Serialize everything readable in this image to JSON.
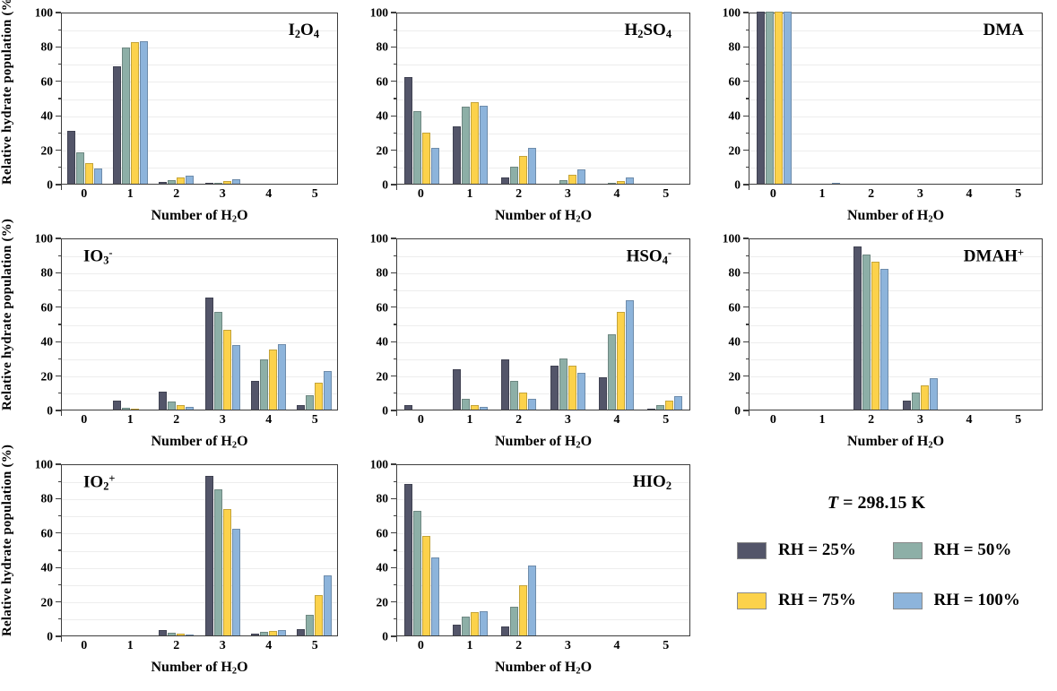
{
  "chart_data": {
    "type": "bar",
    "grouped": true,
    "categories": [
      "0",
      "1",
      "2",
      "3",
      "4",
      "5"
    ],
    "xlabel_parts": [
      {
        "t": "Number of H"
      },
      {
        "t": "2",
        "sub": true
      },
      {
        "t": "O"
      }
    ],
    "ylabel": "Relative hydrate population (%)",
    "ylim": [
      0,
      100
    ],
    "ytick_major_step": 20,
    "ytick_minor_step": 10,
    "grid": "horizontal lines every 10",
    "legend_position": "bottom-right cell",
    "series_names": [
      "RH = 25%",
      "RH = 50%",
      "RH = 75%",
      "RH = 100%"
    ],
    "series_colors": [
      "#535569",
      "#8dafa7",
      "#fcd24b",
      "#8db4db"
    ],
    "panels": [
      {
        "id": "i2o4",
        "title_parts": [
          {
            "t": "I"
          },
          {
            "t": "2",
            "sub": true
          },
          {
            "t": "O"
          },
          {
            "t": "4",
            "sub": true
          }
        ],
        "title_pos": "right",
        "series": [
          {
            "name": "RH = 25%",
            "values": [
              30.5,
              68,
              1,
              0.5,
              0,
              0
            ]
          },
          {
            "name": "RH = 50%",
            "values": [
              18,
              79,
              2,
              0.5,
              0,
              0
            ]
          },
          {
            "name": "RH = 75%",
            "values": [
              12,
              82.5,
              3.5,
              1.5,
              0,
              0
            ]
          },
          {
            "name": "RH = 100%",
            "values": [
              9,
              83,
              4.5,
              2.5,
              0,
              0
            ]
          }
        ]
      },
      {
        "id": "h2so4",
        "title_parts": [
          {
            "t": "H"
          },
          {
            "t": "2",
            "sub": true
          },
          {
            "t": "SO"
          },
          {
            "t": "4",
            "sub": true
          }
        ],
        "title_pos": "right",
        "series": [
          {
            "name": "RH = 25%",
            "values": [
              62,
              33.5,
              3.5,
              0,
              0,
              0
            ]
          },
          {
            "name": "RH = 50%",
            "values": [
              42,
              45,
              10,
              2,
              0.5,
              0
            ]
          },
          {
            "name": "RH = 75%",
            "values": [
              29.5,
              47.5,
              16,
              5,
              1.5,
              0
            ]
          },
          {
            "name": "RH = 100%",
            "values": [
              21,
              45.5,
              21,
              8.5,
              3.5,
              0
            ]
          }
        ]
      },
      {
        "id": "dma",
        "title_parts": [
          {
            "t": "DMA"
          }
        ],
        "title_pos": "right",
        "series": [
          {
            "name": "RH = 25%",
            "values": [
              100,
              0,
              0,
              0,
              0,
              0
            ]
          },
          {
            "name": "RH = 50%",
            "values": [
              100,
              0,
              0,
              0,
              0,
              0
            ]
          },
          {
            "name": "RH = 75%",
            "values": [
              100,
              0,
              0,
              0,
              0,
              0
            ]
          },
          {
            "name": "RH = 100%",
            "values": [
              100,
              0.5,
              0,
              0,
              0,
              0
            ]
          }
        ]
      },
      {
        "id": "io3",
        "title_parts": [
          {
            "t": "IO"
          },
          {
            "t": "3",
            "sub": true
          },
          {
            "t": "-",
            "sup": true
          }
        ],
        "title_pos": "left",
        "series": [
          {
            "name": "RH = 25%",
            "values": [
              0,
              5,
              10.5,
              65,
              16.5,
              2.5
            ]
          },
          {
            "name": "RH = 50%",
            "values": [
              0,
              1,
              4.5,
              57,
              29,
              8.5
            ]
          },
          {
            "name": "RH = 75%",
            "values": [
              0,
              0.5,
              2.5,
              46.5,
              35,
              15.5
            ]
          },
          {
            "name": "RH = 100%",
            "values": [
              0,
              0,
              1.5,
              37.5,
              38,
              22.5
            ]
          }
        ]
      },
      {
        "id": "hso4",
        "title_parts": [
          {
            "t": "HSO"
          },
          {
            "t": "4",
            "sub": true
          },
          {
            "t": "-",
            "sup": true
          }
        ],
        "title_pos": "right",
        "series": [
          {
            "name": "RH = 25%",
            "values": [
              2.5,
              23.5,
              29,
              25.5,
              19,
              0.5
            ]
          },
          {
            "name": "RH = 50%",
            "values": [
              0,
              6.5,
              16.5,
              29.5,
              44,
              2.5
            ]
          },
          {
            "name": "RH = 75%",
            "values": [
              0,
              2.5,
              10,
              25.5,
              57,
              5
            ]
          },
          {
            "name": "RH = 100%",
            "values": [
              0,
              1.5,
              6,
              21.5,
              63.5,
              8
            ]
          }
        ]
      },
      {
        "id": "dmah",
        "title_parts": [
          {
            "t": "DMAH"
          },
          {
            "t": "+",
            "sup": true
          }
        ],
        "title_pos": "right",
        "series": [
          {
            "name": "RH = 25%",
            "values": [
              0,
              0,
              95,
              5,
              0,
              0
            ]
          },
          {
            "name": "RH = 50%",
            "values": [
              0,
              0,
              90,
              10,
              0,
              0
            ]
          },
          {
            "name": "RH = 75%",
            "values": [
              0,
              0,
              86,
              14,
              0,
              0
            ]
          },
          {
            "name": "RH = 100%",
            "values": [
              0,
              0,
              82,
              18,
              0,
              0
            ]
          }
        ]
      },
      {
        "id": "io2",
        "title_parts": [
          {
            "t": "IO"
          },
          {
            "t": "2",
            "sub": true
          },
          {
            "t": "+",
            "sup": true
          }
        ],
        "title_pos": "left",
        "series": [
          {
            "name": "RH = 25%",
            "values": [
              0,
              0,
              3,
              92.5,
              1,
              3.5
            ]
          },
          {
            "name": "RH = 50%",
            "values": [
              0,
              0,
              1.5,
              85,
              2,
              12
            ]
          },
          {
            "name": "RH = 75%",
            "values": [
              0,
              0,
              1,
              73.5,
              2.5,
              23.5
            ]
          },
          {
            "name": "RH = 100%",
            "values": [
              0,
              0,
              0.5,
              62,
              3,
              35
            ]
          }
        ]
      },
      {
        "id": "hio2",
        "title_parts": [
          {
            "t": "HIO"
          },
          {
            "t": "2",
            "sub": true
          }
        ],
        "title_pos": "right",
        "series": [
          {
            "name": "RH = 25%",
            "values": [
              88,
              6.5,
              5,
              0,
              0,
              0
            ]
          },
          {
            "name": "RH = 50%",
            "values": [
              72.5,
              11,
              16.5,
              0,
              0,
              0
            ]
          },
          {
            "name": "RH = 75%",
            "values": [
              58,
              13.5,
              29,
              0,
              0,
              0
            ]
          },
          {
            "name": "RH = 100%",
            "values": [
              45.5,
              14,
              40.5,
              0,
              0,
              0
            ]
          }
        ]
      }
    ]
  },
  "legend": {
    "title_italic": "T",
    "title_rest": " = 298.15 K",
    "entries": [
      {
        "label": "RH = 25%",
        "color": "#535569"
      },
      {
        "label": "RH = 50%",
        "color": "#8dafa7"
      },
      {
        "label": "RH = 75%",
        "color": "#fcd24b"
      },
      {
        "label": "RH = 100%",
        "color": "#8db4db"
      }
    ]
  }
}
